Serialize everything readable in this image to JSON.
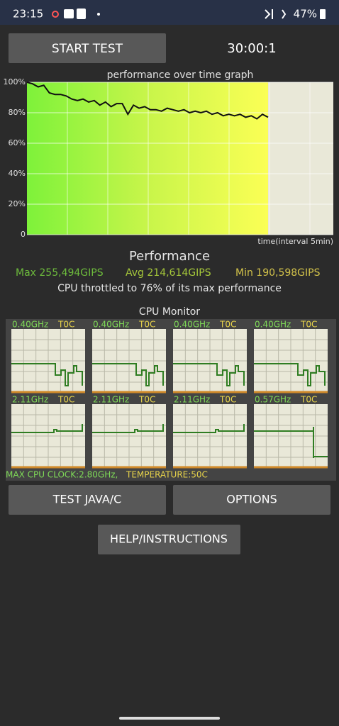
{
  "status": {
    "time": "23:15",
    "battery": "47%"
  },
  "start_button": "START TEST",
  "timer": "30:00:1",
  "graph": {
    "title": "performance over time graph",
    "xlabel": "time(interval 5min)",
    "ylim": [
      0,
      100
    ],
    "yticks": [
      {
        "value": 100,
        "label": "100%"
      },
      {
        "value": 80,
        "label": "80%"
      },
      {
        "value": 60,
        "label": "60%"
      },
      {
        "value": 40,
        "label": "40%"
      },
      {
        "value": 20,
        "label": "20%"
      },
      0
    ],
    "values": [
      100,
      99,
      97,
      98,
      93,
      92,
      92,
      91,
      89,
      88,
      89,
      87,
      88,
      85,
      87,
      84,
      86,
      86,
      79,
      85,
      83,
      84,
      82,
      82,
      81,
      83,
      82,
      81,
      82,
      80,
      81,
      80,
      81,
      79,
      80,
      78,
      79,
      78,
      79,
      77,
      78,
      76,
      79,
      77
    ]
  },
  "performance": {
    "heading": "Performance",
    "max": "Max 255,494GIPS",
    "avg": "Avg 214,614GIPS",
    "min": "Min 190,598GIPS",
    "throttled": "CPU throttled to 76% of its max performance"
  },
  "cpu_monitor": {
    "title": "CPU Monitor",
    "cores": [
      {
        "freq": "0.40GHz",
        "temp": "T0C"
      },
      {
        "freq": "0.40GHz",
        "temp": "T0C"
      },
      {
        "freq": "0.40GHz",
        "temp": "T0C"
      },
      {
        "freq": "0.40GHz",
        "temp": "T0C"
      },
      {
        "freq": "2.11GHz",
        "temp": "T0C"
      },
      {
        "freq": "2.11GHz",
        "temp": "T0C"
      },
      {
        "freq": "2.11GHz",
        "temp": "T0C"
      },
      {
        "freq": "0.57GHz",
        "temp": "T0C"
      }
    ],
    "max_clock": "MAX CPU CLOCK:2.80GHz,",
    "temperature": "TEMPERATURE:50C"
  },
  "buttons": {
    "test": "TEST JAVA/C",
    "options": "OPTIONS",
    "help": "HELP/INSTRUCTIONS"
  }
}
